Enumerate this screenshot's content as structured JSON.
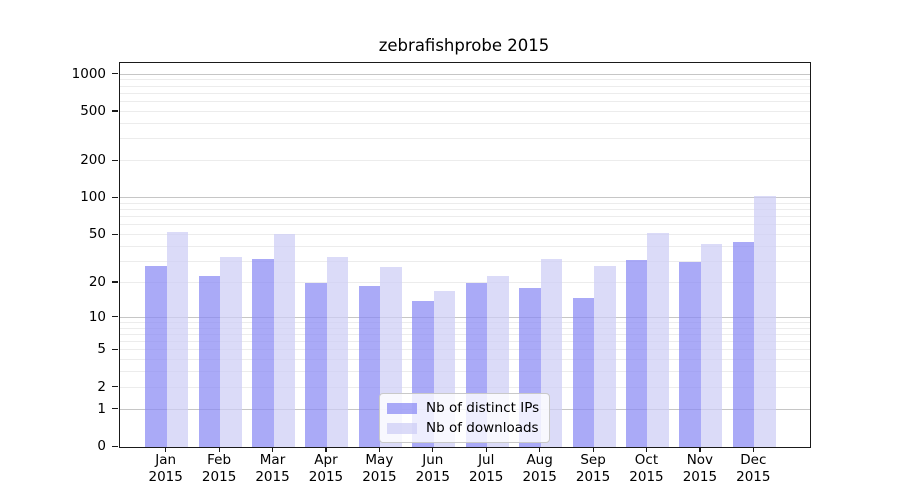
{
  "chart_data": {
    "type": "bar",
    "title": "zebrafishprobe 2015",
    "categories": [
      "Jan",
      "Feb",
      "Mar",
      "Apr",
      "May",
      "Jun",
      "Jul",
      "Aug",
      "Sep",
      "Oct",
      "Nov",
      "Dec"
    ],
    "year": "2015",
    "series": [
      {
        "name": "Nb of distinct IPs",
        "color": "#8989f4",
        "alpha": 0.72,
        "values": [
          28,
          23,
          32,
          20,
          19,
          14,
          20,
          18,
          15,
          31,
          30,
          44
        ]
      },
      {
        "name": "Nb of downloads",
        "color": "#cdcdf5",
        "alpha": 0.72,
        "values": [
          53,
          33,
          51,
          33,
          27,
          17,
          23,
          32,
          28,
          52,
          42,
          104
        ]
      }
    ],
    "y_ticks": [
      0,
      1,
      2,
      5,
      10,
      20,
      50,
      100,
      200,
      500,
      1000
    ],
    "scale": "log10(value+1)",
    "ylim": [
      0,
      1240
    ],
    "grid": true,
    "gridline_major_color": "#c6c6c6",
    "gridline_minor_color": "#ececec",
    "legend_position": "lower center inside"
  }
}
